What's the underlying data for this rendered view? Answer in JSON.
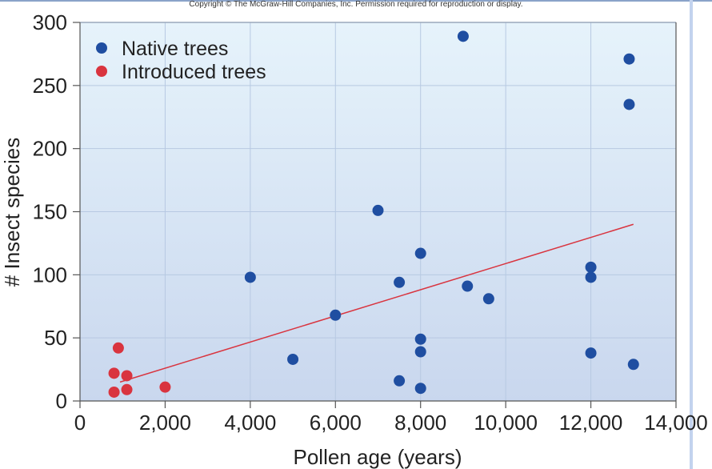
{
  "copyright": "Copyright © The McGraw-Hill Companies, Inc. Permission required for reproduction or display.",
  "chart_data": {
    "type": "scatter",
    "xlabel": "Pollen age (years)",
    "ylabel": "# Insect species",
    "xlim": [
      0,
      14000
    ],
    "ylim": [
      0,
      300
    ],
    "xticks": [
      0,
      2000,
      4000,
      6000,
      8000,
      10000,
      12000,
      14000
    ],
    "xtick_labels": [
      "0",
      "2,000",
      "4,000",
      "6,000",
      "8,000",
      "10,000",
      "12,000",
      "14,000"
    ],
    "yticks": [
      0,
      50,
      100,
      150,
      200,
      250,
      300
    ],
    "ytick_labels": [
      "0",
      "50",
      "100",
      "150",
      "200",
      "250",
      "300"
    ],
    "grid": true,
    "legend_position": "top-left",
    "series": [
      {
        "name": "Native trees",
        "color": "#1f4ea1",
        "points": [
          [
            9000,
            289
          ],
          [
            12900,
            271
          ],
          [
            12900,
            235
          ],
          [
            7000,
            151
          ],
          [
            8000,
            117
          ],
          [
            4000,
            98
          ],
          [
            7500,
            94
          ],
          [
            9100,
            91
          ],
          [
            9600,
            81
          ],
          [
            12000,
            106
          ],
          [
            12000,
            98
          ],
          [
            6000,
            68
          ],
          [
            5000,
            33
          ],
          [
            8000,
            49
          ],
          [
            8000,
            39
          ],
          [
            12000,
            38
          ],
          [
            13000,
            29
          ],
          [
            7500,
            16
          ],
          [
            8000,
            10
          ]
        ]
      },
      {
        "name": "Introduced trees",
        "color": "#d9343f",
        "points": [
          [
            900,
            42
          ],
          [
            800,
            22
          ],
          [
            1100,
            20
          ],
          [
            800,
            7
          ],
          [
            1100,
            9
          ],
          [
            2000,
            11
          ]
        ]
      }
    ],
    "trendline": {
      "color": "#d9343f",
      "from": [
        940,
        15
      ],
      "to": [
        13000,
        140
      ]
    }
  }
}
